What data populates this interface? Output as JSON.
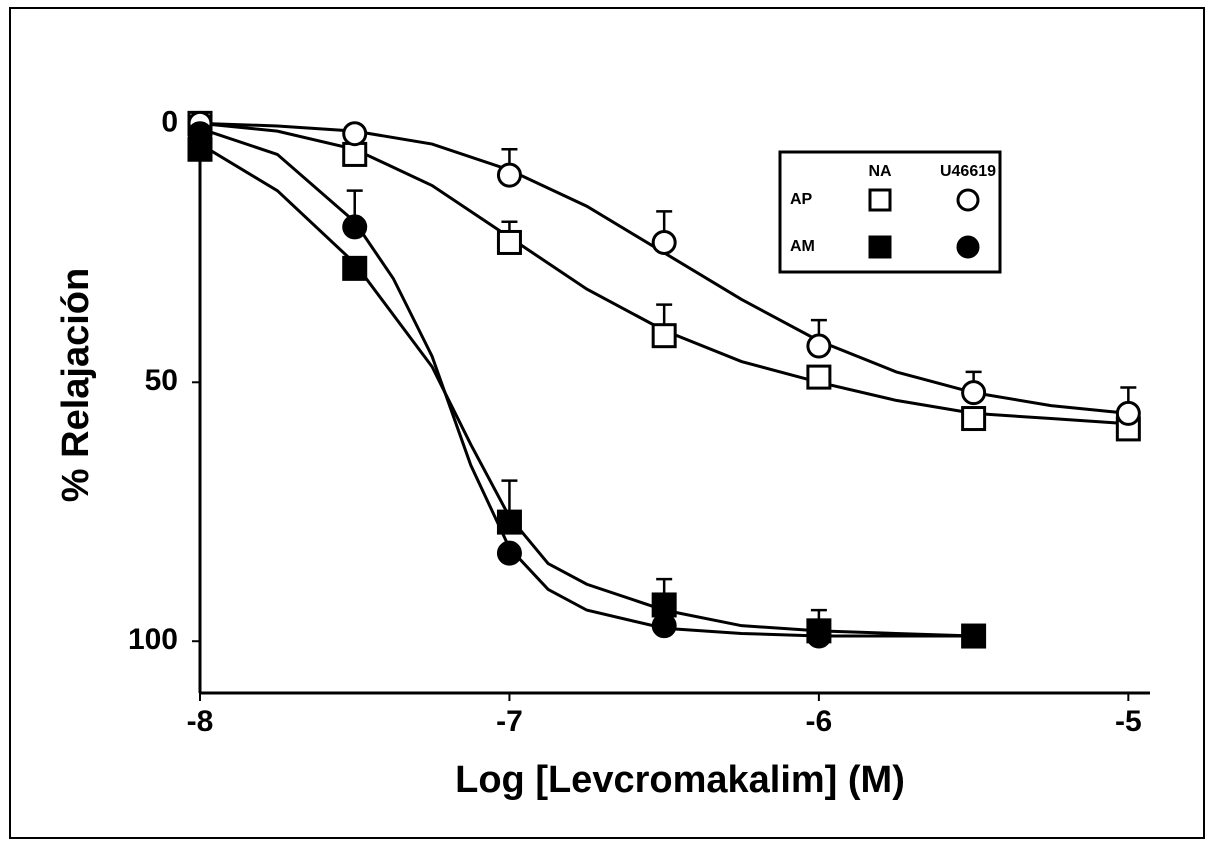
{
  "chart_data": {
    "type": "scatter",
    "xlabel": "Log [Levcromakalim] (M)",
    "ylabel": "% Relajación",
    "xlim": [
      -8,
      -4.93
    ],
    "ylim": [
      -2,
      110
    ],
    "y_inverted": true,
    "xticks": [
      -8,
      -7,
      -6,
      -5
    ],
    "yticks": [
      0,
      50,
      100
    ],
    "x": [
      -8,
      -7.5,
      -7,
      -6.5,
      -6,
      -5.5,
      -5
    ],
    "series": [
      {
        "marker": "square",
        "filled": false,
        "color": "#000000",
        "values": [
          0,
          6,
          23,
          41,
          49,
          57,
          59
        ],
        "errors": [
          null,
          null,
          4,
          6,
          null,
          null,
          null
        ]
      },
      {
        "marker": "circle",
        "filled": false,
        "color": "#000000",
        "values": [
          0,
          2,
          10,
          23,
          43,
          52,
          56
        ],
        "errors": [
          null,
          null,
          5,
          6,
          5,
          4,
          5
        ]
      },
      {
        "marker": "square",
        "filled": true,
        "color": "#000000",
        "values": [
          5,
          28,
          77,
          93,
          98,
          99,
          null
        ],
        "errors": [
          null,
          null,
          8,
          5,
          4,
          null,
          null
        ]
      },
      {
        "marker": "circle",
        "filled": true,
        "color": "#000000",
        "values": [
          2,
          20,
          83,
          97,
          99,
          null,
          null
        ],
        "errors": [
          null,
          7,
          null,
          null,
          null,
          null,
          null
        ]
      }
    ],
    "fits": [
      {
        "color": "#000000",
        "x": [
          -8,
          -7.75,
          -7.5,
          -7.25,
          -7,
          -6.75,
          -6.5,
          -6.25,
          -6,
          -5.75,
          -5.5,
          -5.25,
          -5
        ],
        "values": [
          0,
          1.5,
          5,
          12,
          22,
          32,
          40,
          46,
          50,
          53.5,
          56,
          57,
          58
        ]
      },
      {
        "color": "#000000",
        "x": [
          -8,
          -7.75,
          -7.5,
          -7.25,
          -7,
          -6.75,
          -6.5,
          -6.25,
          -6,
          -5.75,
          -5.5,
          -5.25,
          -5
        ],
        "values": [
          0,
          0.5,
          1.5,
          4,
          9,
          16,
          25,
          34,
          42,
          48,
          52,
          54.5,
          56
        ]
      },
      {
        "color": "#000000",
        "x": [
          -8,
          -7.75,
          -7.5,
          -7.25,
          -7.125,
          -7,
          -6.875,
          -6.75,
          -6.5,
          -6.25,
          -6,
          -5.75,
          -5.5
        ],
        "values": [
          4,
          13,
          27,
          47,
          62,
          76,
          85,
          89,
          94,
          97,
          98,
          98.5,
          99
        ]
      },
      {
        "color": "#000000",
        "x": [
          -8,
          -7.75,
          -7.5,
          -7.375,
          -7.25,
          -7.125,
          -7,
          -6.875,
          -6.75,
          -6.5,
          -6.25,
          -6,
          -5.75,
          -5.5
        ],
        "values": [
          1,
          6,
          19,
          30,
          45,
          66,
          82,
          90,
          94,
          97.5,
          98.5,
          99,
          99,
          99
        ]
      }
    ],
    "legend": {
      "columns": [
        "NA",
        "U46619"
      ],
      "rows": [
        "AP",
        "AM"
      ]
    }
  }
}
